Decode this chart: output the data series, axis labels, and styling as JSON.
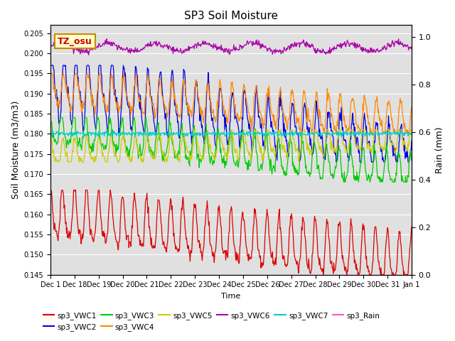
{
  "title": "SP3 Soil Moisture",
  "xlabel": "Time",
  "ylabel_left": "Soil Moisture (m3/m3)",
  "ylabel_right": "Rain (mm)",
  "ylim_left": [
    0.145,
    0.207
  ],
  "ylim_right": [
    0.0,
    1.05
  ],
  "bg_color": "#e0e0e0",
  "fig_color": "#ffffff",
  "x_tick_labels": [
    "Dec 1",
    "Dec 18",
    "Dec 19",
    "Dec 20",
    "Dec 21",
    "Dec 22",
    "Dec 23",
    "Dec 24",
    "Dec 25",
    "Dec 26",
    "Dec 27",
    "Dec 28",
    "Dec 29",
    "Dec 30",
    "Dec 31",
    "Jan 1"
  ],
  "colors": {
    "sp3_VWC1": "#dd0000",
    "sp3_VWC2": "#0000dd",
    "sp3_VWC3": "#00cc00",
    "sp3_VWC4": "#ff8800",
    "sp3_VWC5": "#cccc00",
    "sp3_VWC6": "#aa00aa",
    "sp3_VWC7": "#00cccc",
    "sp3_Rain": "#ff55cc"
  },
  "annotation_text": "TZ_osu",
  "annotation_color": "#cc0000",
  "annotation_bg": "#ffffcc",
  "annotation_border": "#cc8800"
}
